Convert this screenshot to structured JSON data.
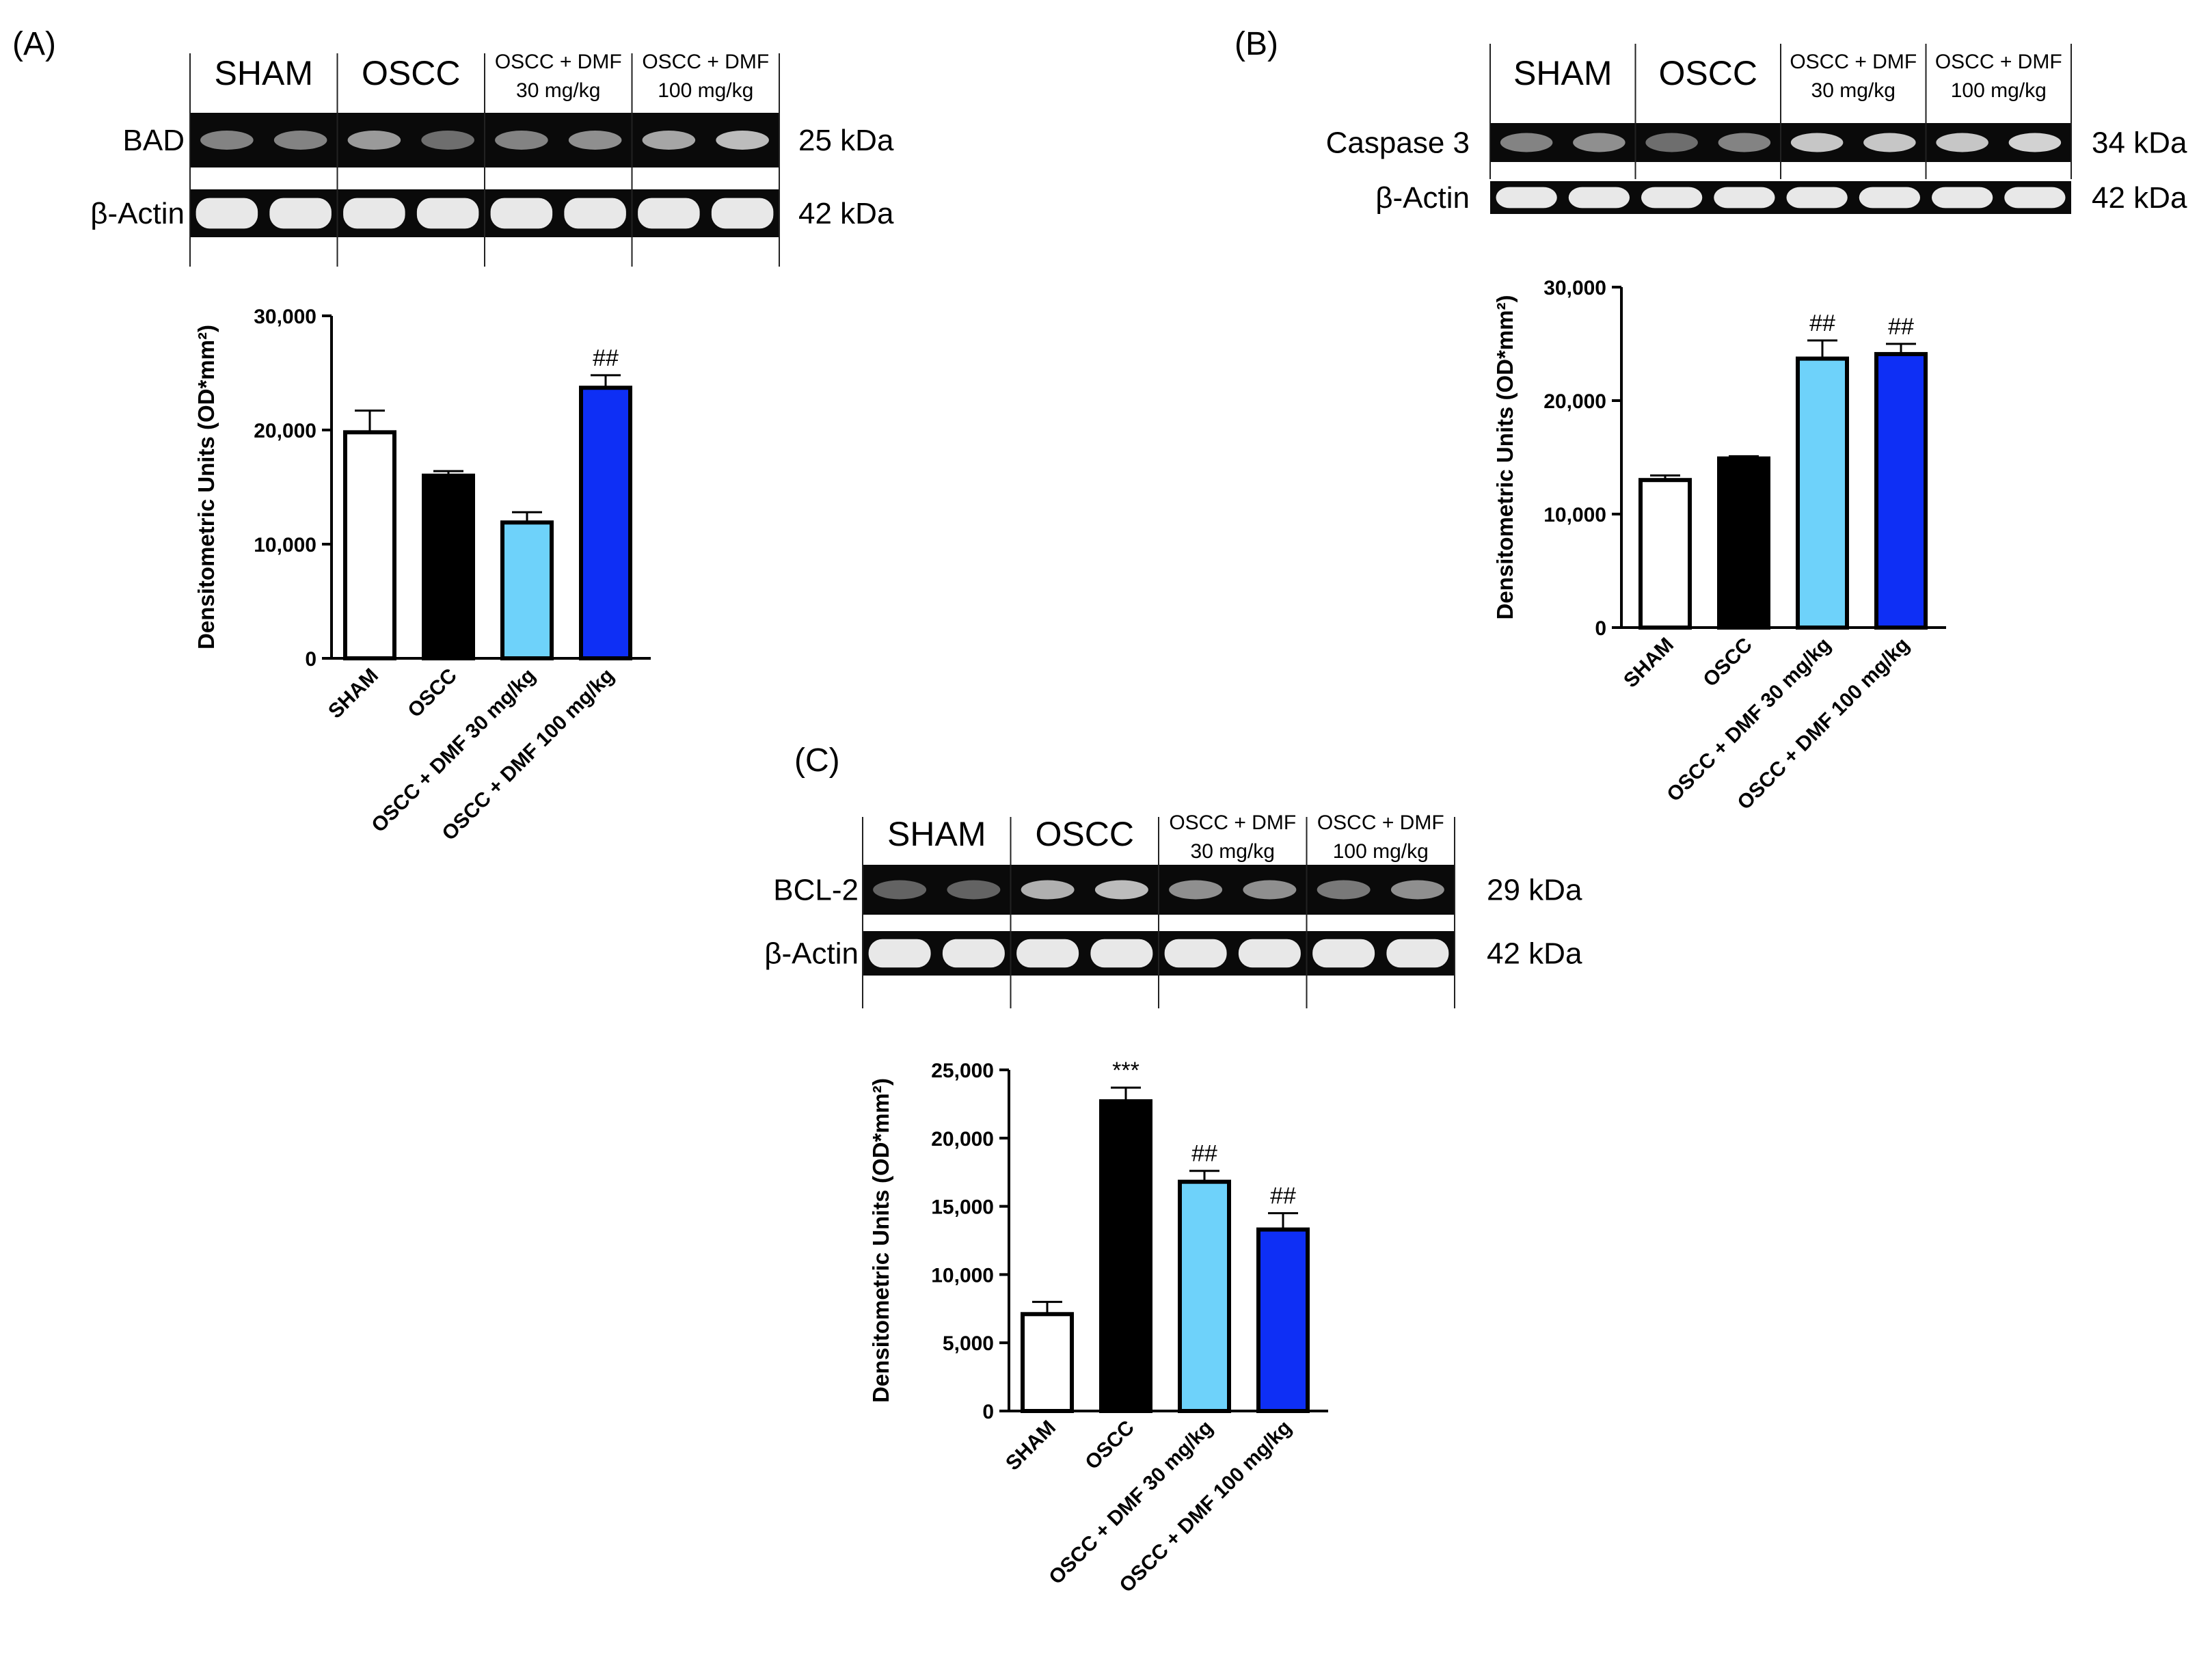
{
  "colors": {
    "sham": "#ffffff",
    "oscc": "#000000",
    "dmf30": "#6ed2fa",
    "dmf100": "#0e2ff5",
    "blot_bg": "#0a0a0a",
    "band": "#e8e8e8"
  },
  "blot_common": {
    "headers": [
      "SHAM",
      "OSCC",
      "OSCC + DMF",
      "30 mg/kg",
      "OSCC + DMF",
      "100 mg/kg"
    ],
    "actin_label": "β-Actin",
    "actin_kda": "42 kDa"
  },
  "panels": [
    {
      "label": "(A)",
      "protein": "BAD",
      "protein_kda": "25 kDa",
      "protein_band_intensity": [
        0.55,
        0.55,
        0.65,
        0.45,
        0.55,
        0.6,
        0.7,
        0.8
      ]
    },
    {
      "label": "(B)",
      "protein": "Caspase 3",
      "protein_kda": "34 kDa",
      "protein_band_intensity": [
        0.55,
        0.6,
        0.45,
        0.55,
        0.85,
        0.85,
        0.85,
        0.9
      ]
    },
    {
      "label": "(C)",
      "protein": "BCL-2",
      "protein_kda": "29 kDa",
      "protein_band_intensity": [
        0.4,
        0.4,
        0.75,
        0.8,
        0.6,
        0.6,
        0.5,
        0.6
      ]
    }
  ],
  "chart_data": [
    {
      "type": "bar",
      "panel": "(A)",
      "title": "",
      "xlabel": "",
      "ylabel": "Densitometric Units (OD*mm²)",
      "categories": [
        "SHAM",
        "OSCC",
        "OSCC + DMF 30 mg/kg",
        "OSCC + DMF 100 mg/kg"
      ],
      "values": [
        19800,
        16000,
        11900,
        23700
      ],
      "errors": [
        1900,
        400,
        900,
        1100
      ],
      "annotations": [
        "",
        "",
        "",
        "##"
      ],
      "ylim": [
        0,
        30000
      ],
      "yticks": [
        0,
        10000,
        20000,
        30000
      ],
      "ytick_labels": [
        "0",
        "10,000",
        "20,000",
        "30,000"
      ]
    },
    {
      "type": "bar",
      "panel": "(B)",
      "title": "",
      "xlabel": "",
      "ylabel": "Densitometric Units (OD*mm²)",
      "categories": [
        "SHAM",
        "OSCC",
        "OSCC + DMF 30 mg/kg",
        "OSCC + DMF 100 mg/kg"
      ],
      "values": [
        13000,
        14900,
        23700,
        24100
      ],
      "errors": [
        400,
        200,
        1600,
        900
      ],
      "annotations": [
        "",
        "",
        "##",
        "##"
      ],
      "ylim": [
        0,
        30000
      ],
      "yticks": [
        0,
        10000,
        20000,
        30000
      ],
      "ytick_labels": [
        "0",
        "10,000",
        "20,000",
        "30,000"
      ]
    },
    {
      "type": "bar",
      "panel": "(C)",
      "title": "",
      "xlabel": "",
      "ylabel": "Densitometric Units (OD*mm²)",
      "categories": [
        "SHAM",
        "OSCC",
        "OSCC + DMF 30 mg/kg",
        "OSCC + DMF 100 mg/kg"
      ],
      "values": [
        7100,
        22700,
        16800,
        13300
      ],
      "errors": [
        900,
        1000,
        800,
        1200
      ],
      "annotations": [
        "",
        "***",
        "##",
        "##"
      ],
      "ylim": [
        0,
        25000
      ],
      "yticks": [
        0,
        5000,
        10000,
        15000,
        20000,
        25000
      ],
      "ytick_labels": [
        "0",
        "5,000",
        "10,000",
        "15,000",
        "20,000",
        "25,000"
      ]
    }
  ]
}
